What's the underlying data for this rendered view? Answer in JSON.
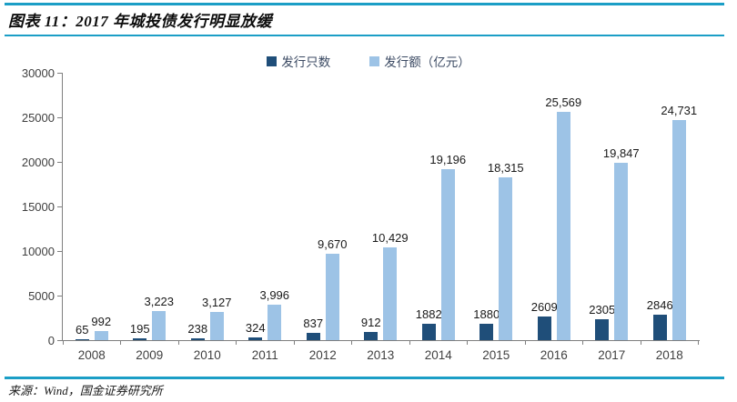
{
  "header": {
    "title": "图表 11：2017 年城投债发行明显放缓"
  },
  "footer": {
    "source": "来源：Wind，国金证券研究所"
  },
  "colors": {
    "accent_rule": "#1b9ec6",
    "bar_dark": "#1F4E79",
    "bar_light": "#9DC3E6",
    "axis_line": "#7f7f7f",
    "tick_label": "#404040",
    "data_label": "#1a1a1a",
    "legend_text": "#3b4a63"
  },
  "chart_data": {
    "type": "bar",
    "title": "图表 11：2017 年城投债发行明显放缓",
    "categories": [
      "2008",
      "2009",
      "2010",
      "2011",
      "2012",
      "2013",
      "2014",
      "2015",
      "2016",
      "2017",
      "2018"
    ],
    "series": [
      {
        "name": "发行只数",
        "color": "#1F4E79",
        "values": [
          65,
          195,
          238,
          324,
          837,
          912,
          1882,
          1880,
          2609,
          2305,
          2846
        ],
        "labels": [
          "65",
          "195",
          "238",
          "324",
          "837",
          "912",
          "1882",
          "1880",
          "2609",
          "2305",
          "2846"
        ]
      },
      {
        "name": "发行额（亿元）",
        "color": "#9DC3E6",
        "values": [
          992,
          3223,
          3127,
          3996,
          9670,
          10429,
          19196,
          18315,
          25569,
          19847,
          24731
        ],
        "labels": [
          "992",
          "3,223",
          "3,127",
          "3,996",
          "9,670",
          "10,429",
          "19,196",
          "18,315",
          "25,569",
          "19,847",
          "24,731"
        ]
      }
    ],
    "xlabel": "",
    "ylabel": "",
    "ylim": [
      0,
      30000
    ],
    "yticks": [
      0,
      5000,
      10000,
      15000,
      20000,
      25000,
      30000
    ],
    "grid": false,
    "legend_position": "top-center",
    "source_note": "来源：Wind，国金证券研究所"
  }
}
